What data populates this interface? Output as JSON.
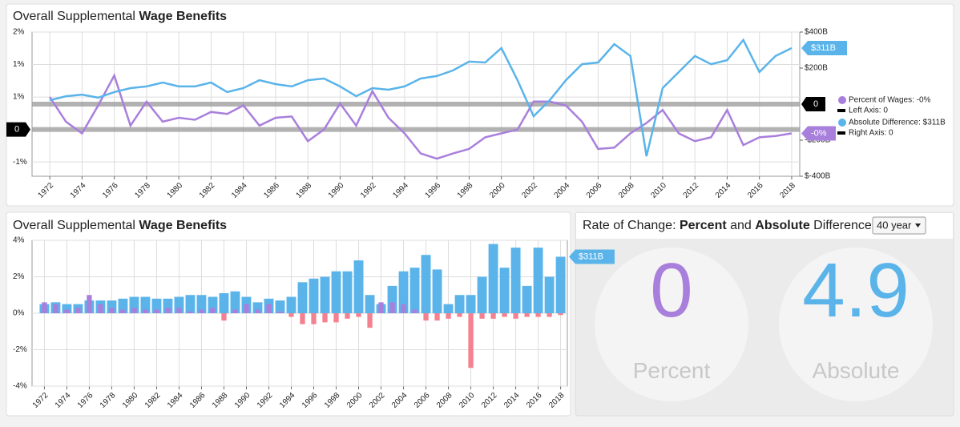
{
  "chart_data": [
    {
      "type": "line",
      "title": "Overall Supplemental ",
      "title_bold": "Wage Benefits",
      "x": [
        1972,
        1973,
        1974,
        1975,
        1976,
        1977,
        1978,
        1979,
        1980,
        1981,
        1982,
        1983,
        1984,
        1985,
        1986,
        1987,
        1988,
        1989,
        1990,
        1991,
        1992,
        1993,
        1994,
        1995,
        1996,
        1997,
        1998,
        1999,
        2000,
        2001,
        2002,
        2003,
        2004,
        2005,
        2006,
        2007,
        2008,
        2009,
        2010,
        2011,
        2012,
        2013,
        2014,
        2015,
        2016,
        2017,
        2018
      ],
      "xlim": [
        1970.9,
        2018.5
      ],
      "xticks": [
        1972,
        1974,
        1976,
        1978,
        1980,
        1982,
        1984,
        1986,
        1988,
        1990,
        1992,
        1994,
        1996,
        1998,
        2000,
        2002,
        2004,
        2006,
        2008,
        2010,
        2012,
        2014,
        2016,
        2018
      ],
      "ylim": [
        -0.72,
        1.5
      ],
      "yticks": [
        {
          "value": 1.5,
          "label": "2%"
        },
        {
          "value": 1,
          "label": "1%"
        },
        {
          "value": 0.5,
          "label": "1%"
        },
        {
          "value": -0.5,
          "label": "-1%"
        }
      ],
      "y2lim": [
        -400,
        400
      ],
      "y2ticks": [
        {
          "value": 400,
          "label": "$400B"
        },
        {
          "value": 200,
          "label": "$200B"
        },
        {
          "value": -200,
          "label": "-$200B"
        },
        {
          "value": -400,
          "label": "$-400B"
        }
      ],
      "zero_markers": [
        {
          "axis": "y",
          "value": 0,
          "label": "0"
        },
        {
          "axis": "y2",
          "value": 0,
          "label": "0"
        }
      ],
      "grid": true,
      "series": [
        {
          "name": "Percent of Wages: -0%",
          "axis_note": "Left Axis: 0",
          "end_label": "-0%",
          "color": "#a97fdc",
          "axis": "y",
          "values": [
            0.5,
            0.12,
            -0.06,
            0.37,
            0.83,
            0.06,
            0.43,
            0.12,
            0.18,
            0.15,
            0.27,
            0.24,
            0.37,
            0.06,
            0.18,
            0.2,
            -0.18,
            0,
            0.4,
            0.06,
            0.59,
            0.18,
            -0.06,
            -0.37,
            -0.45,
            -0.37,
            -0.3,
            -0.12,
            -0.06,
            0,
            0.43,
            0.43,
            0.37,
            0.12,
            -0.3,
            -0.28,
            -0.06,
            0.1,
            0.3,
            -0.06,
            -0.18,
            -0.12,
            0.3,
            -0.24,
            -0.12,
            -0.1,
            -0.06
          ]
        },
        {
          "name": "Absolute Difference: $311B",
          "axis_note": "Right Axis: 0",
          "end_label": "$311B",
          "color": "#5ab4ea",
          "axis": "y2",
          "values": [
            22,
            44,
            53,
            36,
            67,
            89,
            98,
            120,
            98,
            98,
            120,
            67,
            89,
            133,
            111,
            98,
            133,
            142,
            98,
            44,
            89,
            80,
            98,
            142,
            156,
            187,
            236,
            231,
            311,
            133,
            -67,
            22,
            133,
            222,
            231,
            333,
            267,
            -289,
            89,
            178,
            267,
            222,
            244,
            356,
            178,
            267,
            311
          ]
        }
      ]
    },
    {
      "type": "bar",
      "title": "Overall Supplemental ",
      "title_bold": "Wage Benefits",
      "x": [
        1972,
        1973,
        1974,
        1975,
        1976,
        1977,
        1978,
        1979,
        1980,
        1981,
        1982,
        1983,
        1984,
        1985,
        1986,
        1987,
        1988,
        1989,
        1990,
        1991,
        1992,
        1993,
        1994,
        1995,
        1996,
        1997,
        1998,
        1999,
        2000,
        2001,
        2002,
        2003,
        2004,
        2005,
        2006,
        2007,
        2008,
        2009,
        2010,
        2011,
        2012,
        2013,
        2014,
        2015,
        2016,
        2017,
        2018
      ],
      "xlim": [
        1970.9,
        2018.6
      ],
      "xticks": [
        1972,
        1974,
        1976,
        1978,
        1980,
        1982,
        1984,
        1986,
        1988,
        1990,
        1992,
        1994,
        1996,
        1998,
        2000,
        2002,
        2004,
        2006,
        2008,
        2010,
        2012,
        2014,
        2016,
        2018
      ],
      "ylim": [
        -4,
        4
      ],
      "yticks": [
        {
          "value": 4,
          "label": "4%"
        },
        {
          "value": 2,
          "label": "2%"
        },
        {
          "value": 0,
          "label": "0%"
        },
        {
          "value": -2,
          "label": "-2%"
        },
        {
          "value": -4,
          "label": "-4%"
        }
      ],
      "grid": true,
      "series": [
        {
          "color": "#5ab4ea",
          "end_label": "$311B",
          "values": [
            0.5,
            0.6,
            0.5,
            0.5,
            0.7,
            0.7,
            0.7,
            0.8,
            0.9,
            0.9,
            0.8,
            0.8,
            0.9,
            1.0,
            1.0,
            0.9,
            1.1,
            1.2,
            0.9,
            0.6,
            0.8,
            0.7,
            0.9,
            1.7,
            1.9,
            2.0,
            2.3,
            2.3,
            2.9,
            1.0,
            0.5,
            1.5,
            2.3,
            2.5,
            3.2,
            2.4,
            0.5,
            1.0,
            1.0,
            2.0,
            3.8,
            2.5,
            3.6,
            1.5,
            3.6,
            2.0,
            3.1
          ]
        },
        {
          "color": "#a97fdc",
          "negative_color": "#f5808f",
          "values": [
            0.6,
            0.5,
            0.2,
            0.3,
            1.0,
            0.5,
            0.3,
            0.2,
            0.3,
            0.2,
            0.2,
            0.3,
            0.3,
            0.1,
            0.2,
            0.3,
            -0.4,
            0.2,
            0.5,
            0.2,
            0.5,
            0.1,
            -0.2,
            -0.6,
            -0.6,
            -0.5,
            -0.5,
            -0.3,
            -0.2,
            -0.8,
            0.6,
            0.6,
            0.5,
            0.2,
            -0.4,
            -0.4,
            -0.3,
            -0.2,
            -3.0,
            -0.3,
            -0.3,
            -0.2,
            -0.3,
            -0.2,
            -0.2,
            -0.2,
            -0.1
          ]
        }
      ]
    }
  ],
  "rate_panel": {
    "title": [
      "Rate of Change: ",
      "Percent",
      " and ",
      "Absolute",
      " Difference"
    ],
    "select": "40 year",
    "gauges": [
      {
        "value": 0,
        "label": "Percent",
        "color": "#a97fdc"
      },
      {
        "value": 4.9,
        "label": "Absolute",
        "color": "#5ab4ea"
      }
    ]
  }
}
